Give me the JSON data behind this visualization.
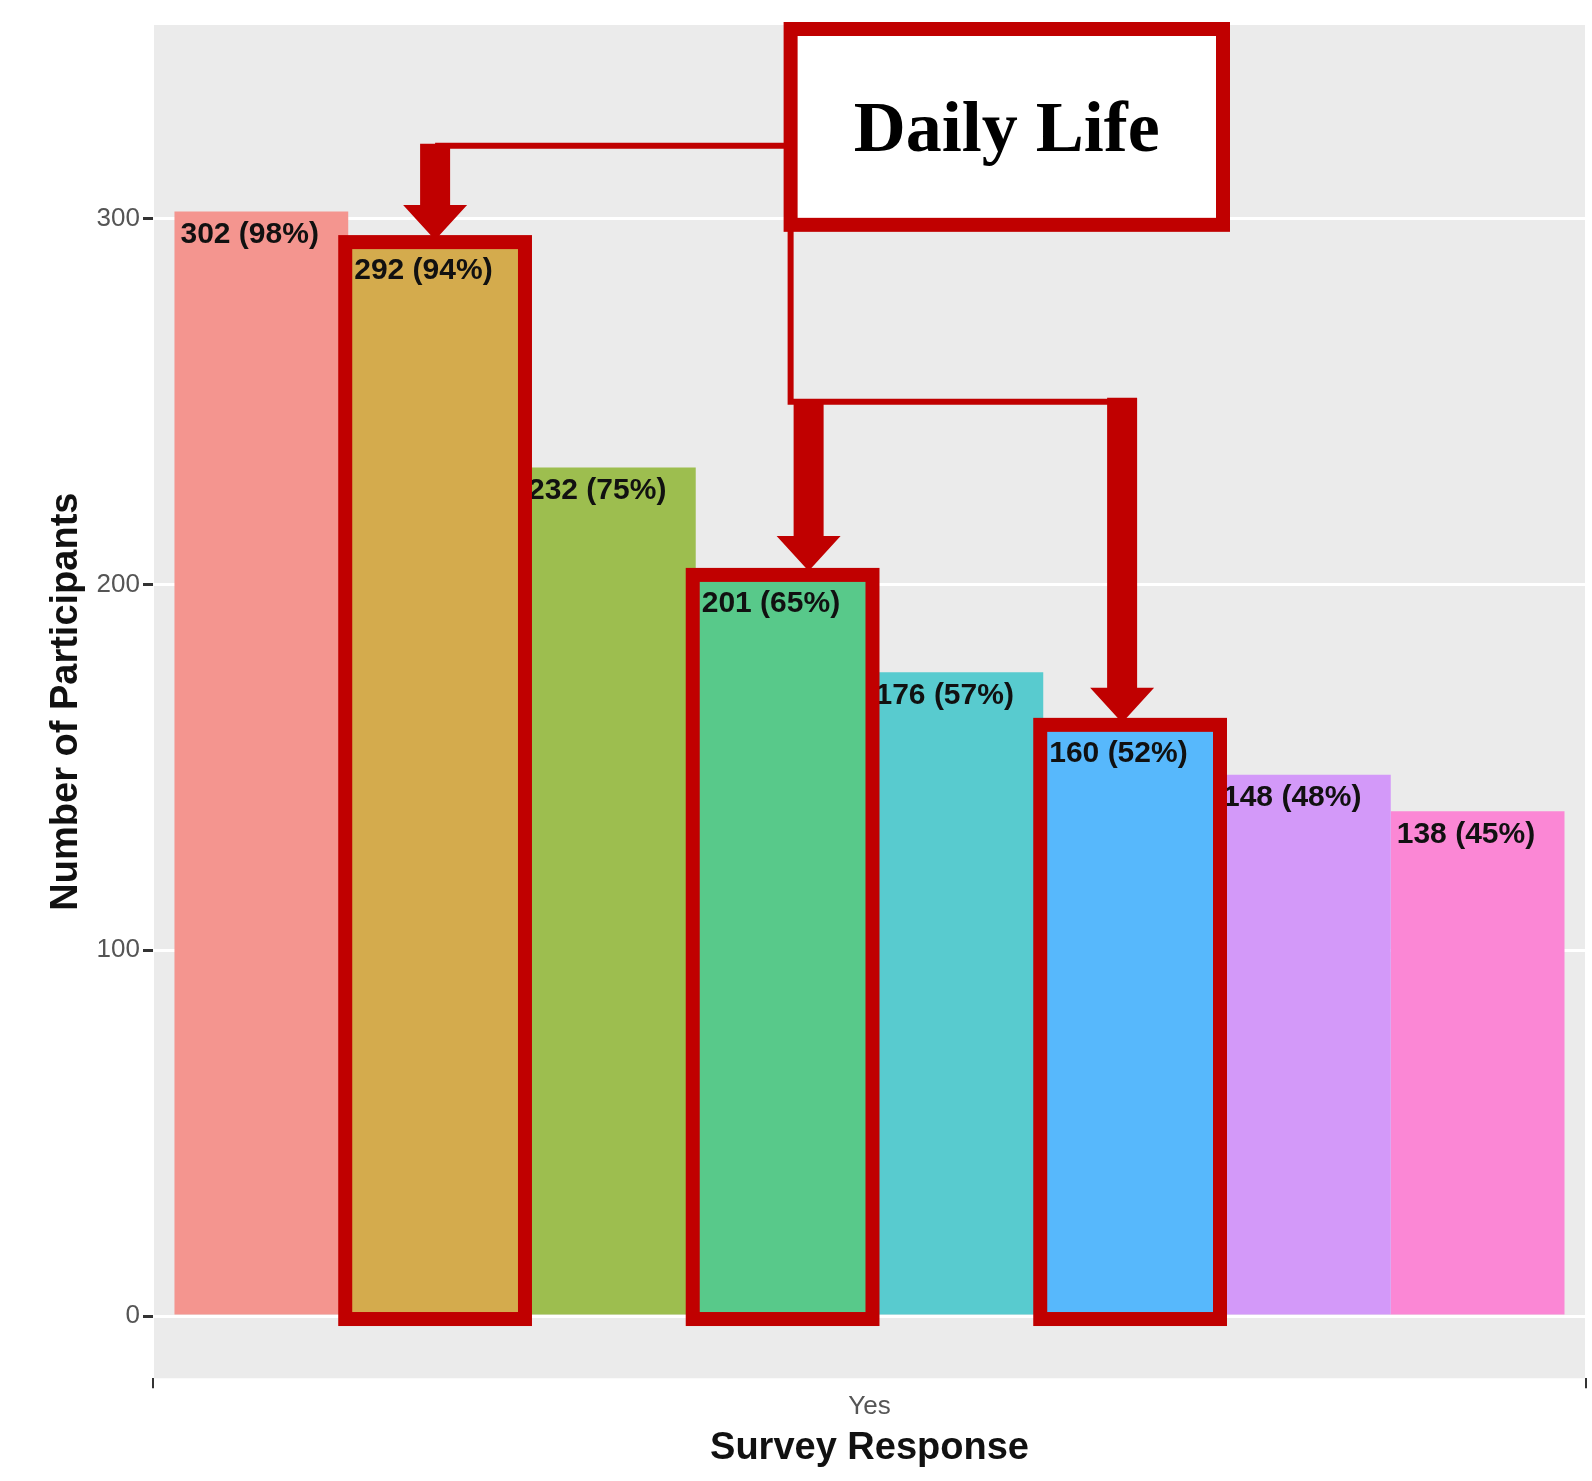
{
  "chart_data": {
    "type": "bar",
    "categories": [
      "Yes"
    ],
    "xlabel": "Survey Response",
    "ylabel": "Number of Participants",
    "ylim": [
      -17,
      353
    ],
    "yticks": [
      0,
      100,
      200,
      300
    ],
    "grid": true,
    "legend": false,
    "annotations": [
      "Daily Life"
    ],
    "series": [
      {
        "color": "#f4958f",
        "values": [
          302
        ],
        "value_labels": [
          "302 (98%)"
        ]
      },
      {
        "color": "#d4ab4d",
        "values": [
          292
        ],
        "value_labels": [
          "292 (94%)"
        ]
      },
      {
        "color": "#9dbe4f",
        "values": [
          232
        ],
        "value_labels": [
          "232 (75%)"
        ]
      },
      {
        "color": "#58c98a",
        "values": [
          201
        ],
        "value_labels": [
          "201 (65%)"
        ]
      },
      {
        "color": "#58cbcf",
        "values": [
          176
        ],
        "value_labels": [
          "176 (57%)"
        ]
      },
      {
        "color": "#57b8fc",
        "values": [
          160
        ],
        "value_labels": [
          "160 (52%)"
        ]
      },
      {
        "color": "#d399f9",
        "values": [
          148
        ],
        "value_labels": [
          "148 (48%)"
        ]
      },
      {
        "color": "#fb87d5",
        "values": [
          138
        ],
        "value_labels": [
          "138 (45%)"
        ]
      }
    ]
  }
}
